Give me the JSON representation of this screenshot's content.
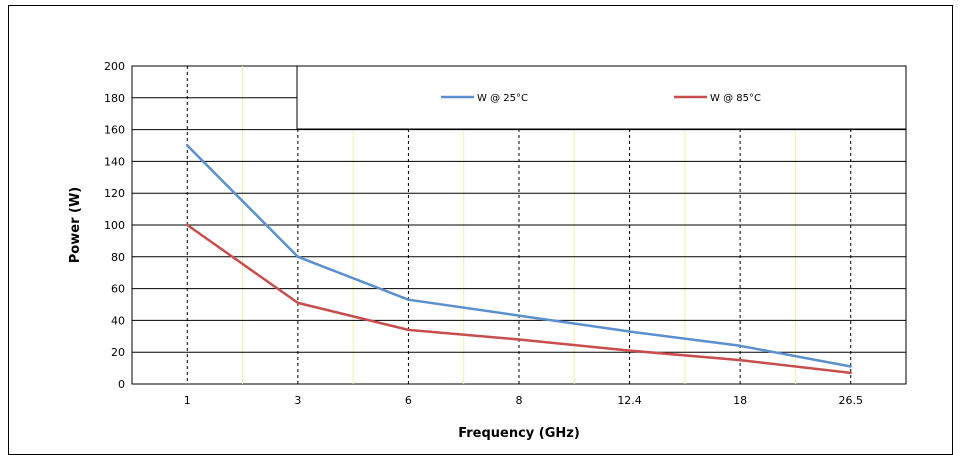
{
  "chart_data": {
    "type": "line",
    "title": "",
    "xlabel": "Frequency (GHz)",
    "ylabel": "Power (W)",
    "categories": [
      "1",
      "3",
      "6",
      "8",
      "12.4",
      "18",
      "26.5"
    ],
    "ylim": [
      0,
      200
    ],
    "yticks": [
      0,
      20,
      40,
      60,
      80,
      100,
      120,
      140,
      160,
      180,
      200
    ],
    "grid": true,
    "legend_position": "top",
    "series": [
      {
        "name": "W @ 25°C",
        "color": "#5b8fd0",
        "values": [
          150,
          80,
          53,
          43,
          33,
          24,
          11
        ]
      },
      {
        "name": "W @ 85°C",
        "color": "#c84e4e",
        "values": [
          100,
          51,
          34,
          28,
          21,
          15,
          7
        ]
      }
    ]
  }
}
